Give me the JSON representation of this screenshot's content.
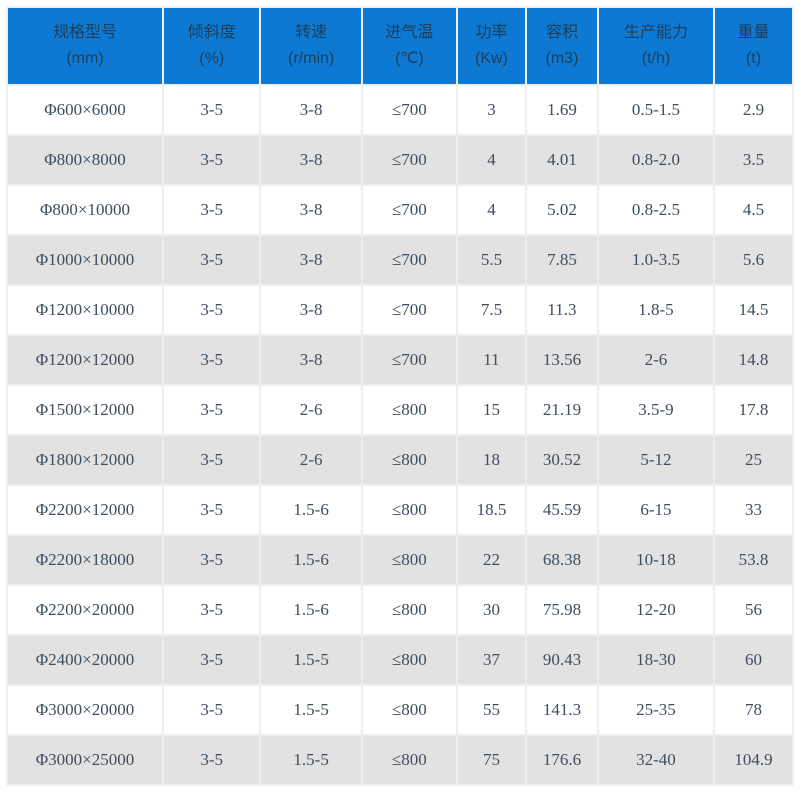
{
  "colors": {
    "header_bg": "#0d79d2",
    "header_text": "#1d3e5a",
    "body_text": "#3f4d5c",
    "row_alt_bg": "#e2e2e2",
    "separator": "#efefef"
  },
  "chart_data": {
    "type": "table",
    "title": "",
    "columns": [
      {
        "title": "规格型号",
        "unit": "(mm)"
      },
      {
        "title": "倾斜度",
        "unit": "(%)"
      },
      {
        "title": "转速",
        "unit": "(r/min)"
      },
      {
        "title": "进气温",
        "unit": "(℃)"
      },
      {
        "title": "功率",
        "unit": "(Kw)"
      },
      {
        "title": "容积",
        "unit": "(m3)"
      },
      {
        "title": "生产能力",
        "unit": "(t/h)"
      },
      {
        "title": "重量",
        "unit": "(t)"
      }
    ],
    "rows": [
      [
        "Φ600×6000",
        "3-5",
        "3-8",
        "≤700",
        "3",
        "1.69",
        "0.5-1.5",
        "2.9"
      ],
      [
        "Φ800×8000",
        "3-5",
        "3-8",
        "≤700",
        "4",
        "4.01",
        "0.8-2.0",
        "3.5"
      ],
      [
        "Φ800×10000",
        "3-5",
        "3-8",
        "≤700",
        "4",
        "5.02",
        "0.8-2.5",
        "4.5"
      ],
      [
        "Φ1000×10000",
        "3-5",
        "3-8",
        "≤700",
        "5.5",
        "7.85",
        "1.0-3.5",
        "5.6"
      ],
      [
        "Φ1200×10000",
        "3-5",
        "3-8",
        "≤700",
        "7.5",
        "11.3",
        "1.8-5",
        "14.5"
      ],
      [
        "Φ1200×12000",
        "3-5",
        "3-8",
        "≤700",
        "11",
        "13.56",
        "2-6",
        "14.8"
      ],
      [
        "Φ1500×12000",
        "3-5",
        "2-6",
        "≤800",
        "15",
        "21.19",
        "3.5-9",
        "17.8"
      ],
      [
        "Φ1800×12000",
        "3-5",
        "2-6",
        "≤800",
        "18",
        "30.52",
        "5-12",
        "25"
      ],
      [
        "Φ2200×12000",
        "3-5",
        "1.5-6",
        "≤800",
        "18.5",
        "45.59",
        "6-15",
        "33"
      ],
      [
        "Φ2200×18000",
        "3-5",
        "1.5-6",
        "≤800",
        "22",
        "68.38",
        "10-18",
        "53.8"
      ],
      [
        "Φ2200×20000",
        "3-5",
        "1.5-6",
        "≤800",
        "30",
        "75.98",
        "12-20",
        "56"
      ],
      [
        "Φ2400×20000",
        "3-5",
        "1.5-5",
        "≤800",
        "37",
        "90.43",
        "18-30",
        "60"
      ],
      [
        "Φ3000×20000",
        "3-5",
        "1.5-5",
        "≤800",
        "55",
        "141.3",
        "25-35",
        "78"
      ],
      [
        "Φ3000×25000",
        "3-5",
        "1.5-5",
        "≤800",
        "75",
        "176.6",
        "32-40",
        "104.9"
      ]
    ]
  }
}
